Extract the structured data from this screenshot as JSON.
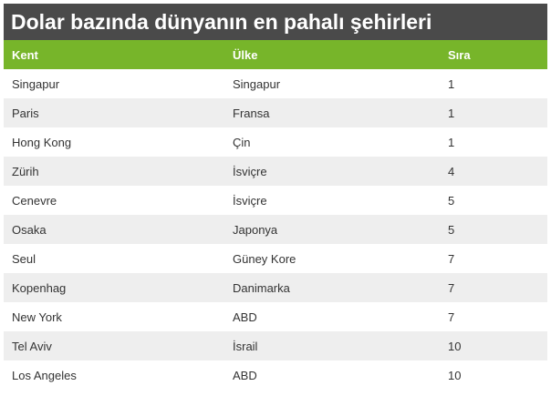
{
  "title": "Dolar bazında dünyanın en pahalı şehirleri",
  "colors": {
    "title_bg": "#4a4a4a",
    "header_bg": "#77b52a",
    "stripe_bg": "#eeeeee"
  },
  "table": {
    "columns": [
      "Kent",
      "Ülke",
      "Sıra"
    ],
    "rows": [
      [
        "Singapur",
        "Singapur",
        "1"
      ],
      [
        "Paris",
        "Fransa",
        "1"
      ],
      [
        "Hong Kong",
        "Çin",
        "1"
      ],
      [
        "Zürih",
        "İsviçre",
        "4"
      ],
      [
        "Cenevre",
        "İsviçre",
        "5"
      ],
      [
        "Osaka",
        "Japonya",
        "5"
      ],
      [
        "Seul",
        "Güney Kore",
        "7"
      ],
      [
        "Kopenhag",
        "Danimarka",
        "7"
      ],
      [
        "New York",
        "ABD",
        "7"
      ],
      [
        "Tel Aviv",
        "İsrail",
        "10"
      ],
      [
        "Los Angeles",
        "ABD",
        "10"
      ]
    ]
  }
}
